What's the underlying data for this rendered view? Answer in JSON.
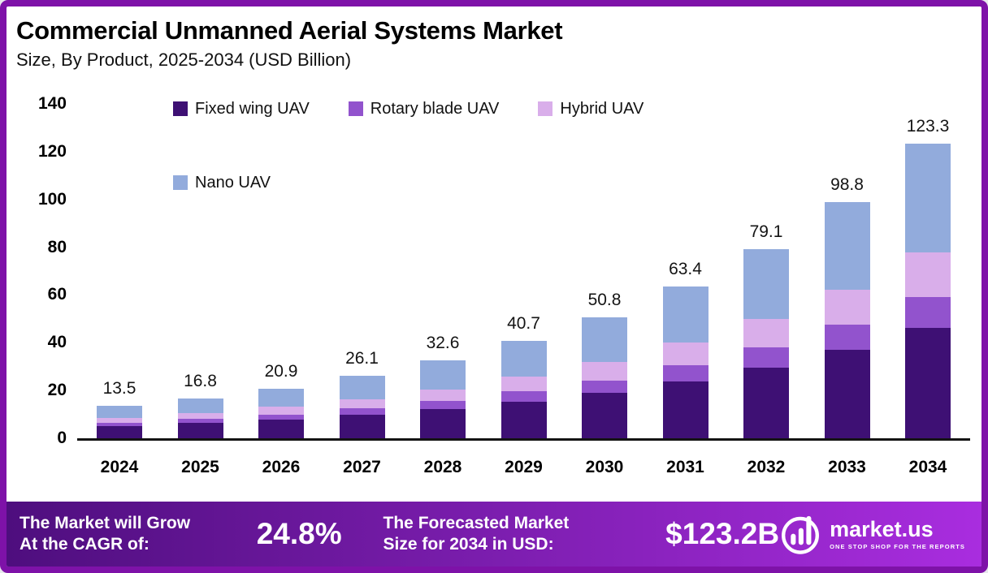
{
  "header": {
    "title": "Commercial Unmanned Aerial Systems Market",
    "subtitle": "Size, By Product, 2025-2034 (USD Billion)"
  },
  "chart_data": {
    "type": "bar",
    "stacked": true,
    "title": "Commercial Unmanned Aerial Systems Market Size, By Product, 2025-2034 (USD Billion)",
    "categories": [
      "2024",
      "2025",
      "2026",
      "2027",
      "2028",
      "2029",
      "2030",
      "2031",
      "2032",
      "2033",
      "2034"
    ],
    "series": [
      {
        "name": "Fixed wing UAV",
        "color": "#3e1074",
        "values": [
          5.0,
          6.3,
          7.8,
          9.8,
          12.2,
          15.3,
          19.0,
          23.8,
          29.7,
          37.1,
          46.2
        ]
      },
      {
        "name": "Rotary blade UAV",
        "color": "#9253cd",
        "values": [
          1.4,
          1.8,
          2.2,
          2.7,
          3.4,
          4.3,
          5.3,
          6.7,
          8.3,
          10.4,
          13.0
        ]
      },
      {
        "name": "Hybrid UAV",
        "color": "#d9aeea",
        "values": [
          2.0,
          2.5,
          3.1,
          3.9,
          4.9,
          6.1,
          7.6,
          9.5,
          11.9,
          14.8,
          18.5
        ]
      },
      {
        "name": "Nano UAV",
        "color": "#92abdc",
        "values": [
          5.1,
          6.2,
          7.8,
          9.7,
          12.1,
          15.0,
          18.9,
          23.4,
          29.2,
          36.5,
          45.6
        ]
      }
    ],
    "totals": [
      13.5,
      16.8,
      20.9,
      26.1,
      32.6,
      40.7,
      50.8,
      63.4,
      79.1,
      98.8,
      123.3
    ],
    "xlabel": "",
    "ylabel": "",
    "ylim": [
      0,
      140
    ],
    "yticks": [
      0,
      20,
      40,
      60,
      80,
      100,
      120,
      140
    ],
    "grid": false,
    "legend_position": "top-left-inside"
  },
  "footer": {
    "cagr_label": "The Market will Grow\nAt the CAGR of:",
    "cagr_value": "24.8%",
    "forecast_label": "The Forecasted Market\nSize for 2034 in USD:",
    "forecast_value": "$123.2B",
    "brand": {
      "name": "market.us",
      "tagline": "ONE STOP SHOP FOR THE REPORTS"
    }
  },
  "colors": {
    "border": "#7e12a8",
    "banner_gradient_start": "#4e0e7e",
    "banner_gradient_end": "#a92ddf",
    "background": "#ffffff"
  }
}
